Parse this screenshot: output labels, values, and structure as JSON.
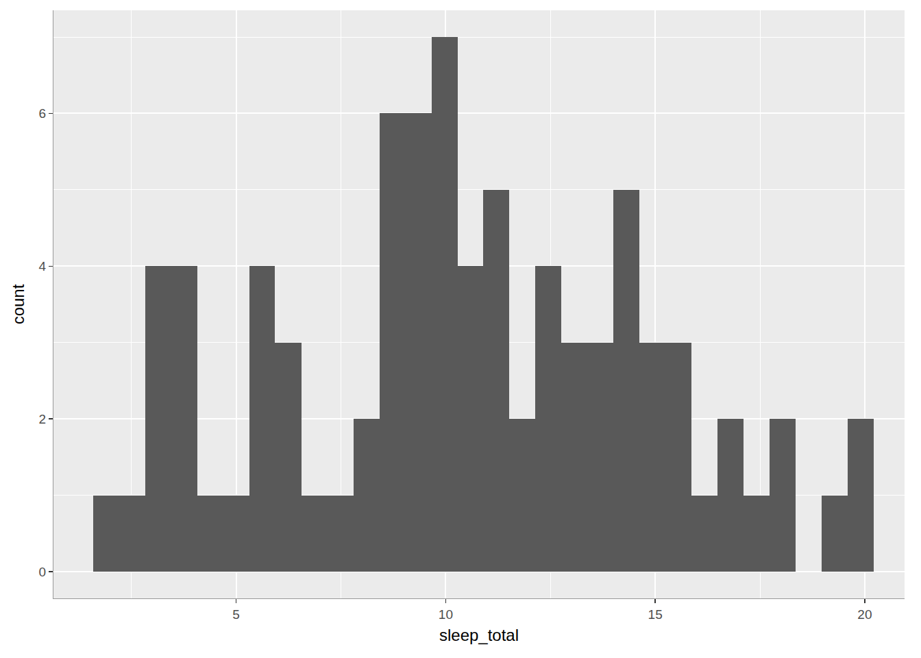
{
  "chart_data": {
    "type": "histogram",
    "x_label": "sleep_total",
    "y_label": "count",
    "bins": [
      1.59,
      2.21,
      2.83,
      3.45,
      4.07,
      4.69,
      5.31,
      5.93,
      6.56,
      7.18,
      7.8,
      8.42,
      9.04,
      9.66,
      10.28,
      10.9,
      11.52,
      12.14,
      12.76,
      13.38,
      14.0,
      14.62,
      15.24,
      15.87,
      16.49,
      17.11,
      17.73,
      18.35,
      18.97,
      19.59,
      20.21
    ],
    "values": [
      1,
      1,
      4,
      4,
      1,
      1,
      4,
      3,
      1,
      1,
      2,
      6,
      6,
      7,
      4,
      5,
      2,
      4,
      3,
      3,
      5,
      3,
      3,
      1,
      2,
      1,
      2,
      0,
      1,
      2
    ],
    "color": "#595959",
    "xlim": [
      0.64,
      20.95
    ],
    "xticks": [
      5,
      10,
      15,
      20
    ],
    "ylim": [
      -0.35,
      7.35
    ],
    "yticks": [
      0,
      2,
      4,
      6
    ],
    "grid": true
  }
}
